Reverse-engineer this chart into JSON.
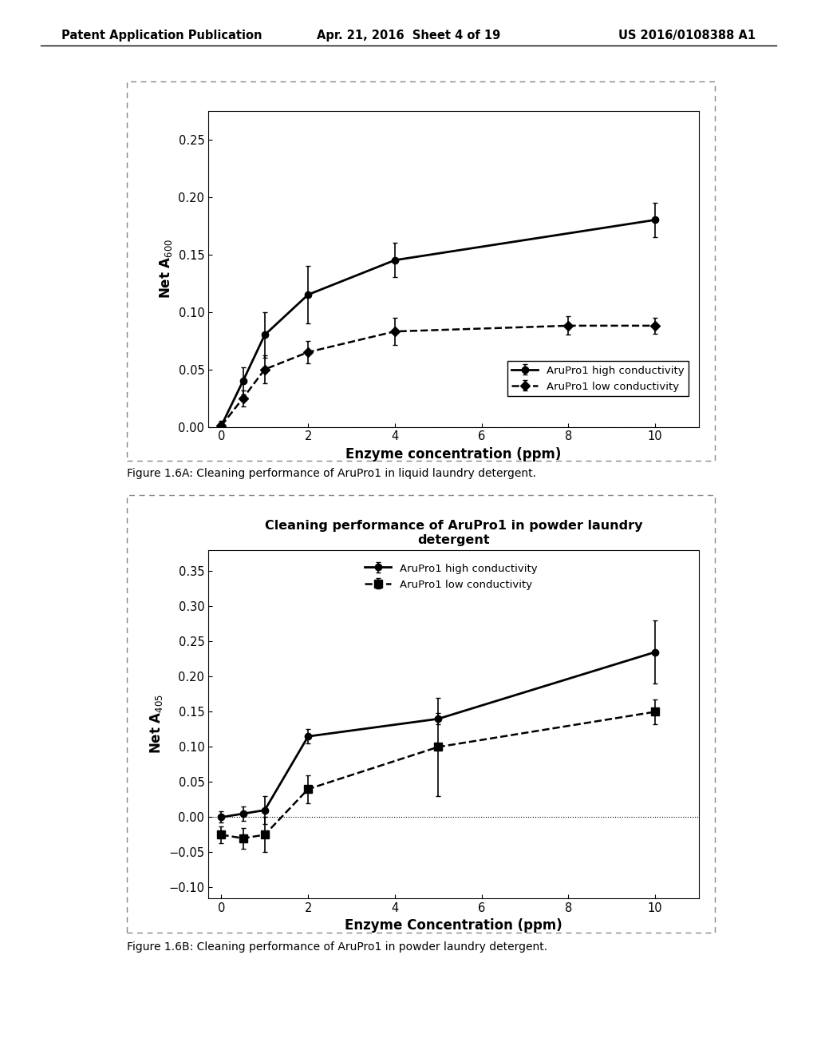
{
  "page_header": {
    "left": "Patent Application Publication",
    "center": "Apr. 21, 2016  Sheet 4 of 19",
    "right": "US 2016/0108388 A1"
  },
  "fig1": {
    "xlabel": "Enzyme concentration (ppm)",
    "ylabel": "Net A$_{600}$",
    "ylim": [
      0,
      0.275
    ],
    "xlim": [
      -0.3,
      11
    ],
    "yticks": [
      0,
      0.05,
      0.1,
      0.15,
      0.2,
      0.25
    ],
    "xticks": [
      0,
      2,
      4,
      6,
      8,
      10
    ],
    "high_x": [
      0,
      0.5,
      1,
      2,
      4,
      10
    ],
    "high_y": [
      0.001,
      0.04,
      0.08,
      0.115,
      0.145,
      0.18
    ],
    "high_yerr": [
      0.004,
      0.012,
      0.02,
      0.025,
      0.015,
      0.015
    ],
    "low_x": [
      0,
      0.5,
      1,
      2,
      4,
      8,
      10
    ],
    "low_y": [
      0.001,
      0.025,
      0.05,
      0.065,
      0.083,
      0.088,
      0.088
    ],
    "low_yerr": [
      0.003,
      0.007,
      0.012,
      0.01,
      0.012,
      0.008,
      0.007
    ],
    "legend1": "AruPro1 high conductivity",
    "legend2": "AruPro1 low conductivity",
    "caption": "Figure 1.6A: Cleaning performance of AruPro1 in liquid laundry detergent."
  },
  "fig2": {
    "title": "Cleaning performance of AruPro1 in powder laundry\ndetergent",
    "xlabel": "Enzyme Concentration (ppm)",
    "ylabel": "Net A$_{405}$",
    "ylim": [
      -0.115,
      0.38
    ],
    "xlim": [
      -0.3,
      11
    ],
    "yticks": [
      -0.1,
      -0.05,
      0,
      0.05,
      0.1,
      0.15,
      0.2,
      0.25,
      0.3,
      0.35
    ],
    "xticks": [
      0,
      2,
      4,
      6,
      8,
      10
    ],
    "high_x": [
      0,
      0.5,
      1,
      2,
      5,
      10
    ],
    "high_y": [
      0.0,
      0.005,
      0.01,
      0.115,
      0.14,
      0.235
    ],
    "high_yerr": [
      0.008,
      0.01,
      0.02,
      0.01,
      0.008,
      0.045
    ],
    "low_x": [
      0,
      0.5,
      1,
      2,
      5,
      10
    ],
    "low_y": [
      -0.025,
      -0.03,
      -0.025,
      0.04,
      0.1,
      0.15
    ],
    "low_yerr": [
      0.012,
      0.015,
      0.025,
      0.02,
      0.07,
      0.018
    ],
    "legend1": "AruPro1 high conductivity",
    "legend2": "AruPro1 low conductivity",
    "caption": "Figure 1.6B: Cleaning performance of AruPro1 in powder laundry detergent."
  },
  "bg_color": "#ffffff"
}
